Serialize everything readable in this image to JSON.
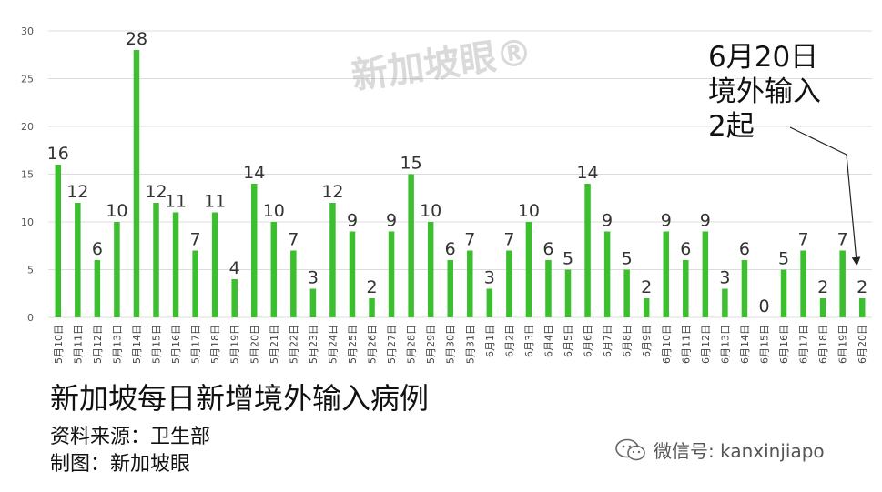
{
  "chart_data": {
    "type": "bar",
    "categories": [
      "5月10日",
      "5月11日",
      "5月12日",
      "5月13日",
      "5月14日",
      "5月15日",
      "5月16日",
      "5月17日",
      "5月18日",
      "5月19日",
      "5月20日",
      "5月21日",
      "5月22日",
      "5月23日",
      "5月24日",
      "5月25日",
      "5月26日",
      "5月27日",
      "5月28日",
      "5月29日",
      "5月30日",
      "5月31日",
      "6月1日",
      "6月2日",
      "6月3日",
      "6月4日",
      "6月5日",
      "6月6日",
      "6月7日",
      "6月8日",
      "6月9日",
      "6月10日",
      "6月11日",
      "6月12日",
      "6月13日",
      "6月14日",
      "6月15日",
      "6月16日",
      "6月17日",
      "6月18日",
      "6月19日",
      "6月20日"
    ],
    "values": [
      16,
      12,
      6,
      10,
      28,
      12,
      11,
      7,
      11,
      4,
      14,
      10,
      7,
      3,
      12,
      9,
      2,
      9,
      15,
      10,
      6,
      7,
      3,
      7,
      10,
      6,
      5,
      14,
      9,
      5,
      2,
      9,
      6,
      9,
      3,
      6,
      0,
      5,
      7,
      2,
      7,
      2
    ],
    "title": "新加坡每日新增境外输入病例",
    "xlabel": "",
    "ylabel": "",
    "ylim": [
      0,
      30
    ],
    "yticks": [
      0,
      5,
      10,
      15,
      20,
      25,
      30
    ],
    "grid": true,
    "bar_color": "#3cbf2e"
  },
  "source_line": "资料来源：卫生部",
  "credit_line": "制图：新加坡眼",
  "annotation": {
    "lines": [
      "6月20日",
      "境外输入",
      "2起"
    ]
  },
  "watermark": "新加坡眼®",
  "brand": {
    "icon": "wechat-icon",
    "text": "微信号: kanxinjiapo"
  }
}
